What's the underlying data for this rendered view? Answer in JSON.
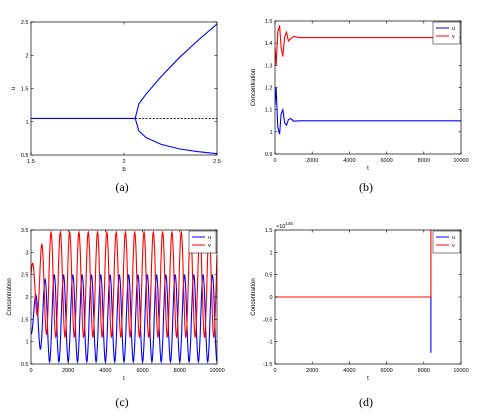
{
  "figure": {
    "captions": [
      "(a)",
      "(b)",
      "(c)",
      "(d)"
    ]
  },
  "chart_data": [
    {
      "panel": "a",
      "type": "line",
      "xlabel": "b",
      "ylabel": "u",
      "xlim": [
        1.5,
        2.5
      ],
      "ylim": [
        0.5,
        2.5
      ],
      "xticks": [
        "1.5",
        "2",
        "2.5"
      ],
      "yticks": [
        "0.5",
        "1",
        "1.5",
        "2",
        "2.5"
      ],
      "grid": false,
      "series": [
        {
          "style": "solid",
          "color": "#0000ff",
          "x": [
            1.5,
            2.06
          ],
          "y": [
            1.05,
            1.05
          ]
        },
        {
          "style": "dashed",
          "color": "#000000",
          "x": [
            2.06,
            2.5
          ],
          "y": [
            1.05,
            1.05
          ]
        },
        {
          "style": "solid",
          "color": "#0000ff",
          "x": [
            2.5,
            2.4,
            2.3,
            2.2,
            2.12,
            2.08,
            2.06,
            2.08,
            2.12,
            2.2,
            2.3,
            2.4,
            2.5
          ],
          "y": [
            2.47,
            2.23,
            1.97,
            1.68,
            1.42,
            1.27,
            1.05,
            0.86,
            0.76,
            0.66,
            0.59,
            0.55,
            0.52
          ]
        }
      ]
    },
    {
      "panel": "b",
      "type": "line",
      "xlabel": "t",
      "ylabel": "Concentration",
      "xlim": [
        0,
        10000
      ],
      "ylim": [
        0.9,
        1.5
      ],
      "xticks": [
        "0",
        "2000",
        "4000",
        "6000",
        "8000",
        "10000"
      ],
      "yticks": [
        "0.9",
        "1",
        "1.1",
        "1.2",
        "1.3",
        "1.4",
        "1.5"
      ],
      "legend": "top-right",
      "grid": false,
      "series": [
        {
          "name": "u",
          "color": "#0000ff",
          "x": [
            0,
            60,
            150,
            250,
            330,
            420,
            520,
            620,
            720,
            850,
            1000,
            1300,
            10000
          ],
          "y": [
            1.12,
            1.2,
            1.02,
            0.99,
            1.08,
            1.1,
            1.04,
            1.03,
            1.055,
            1.06,
            1.048,
            1.05,
            1.05
          ]
        },
        {
          "name": "v",
          "color": "#ff0000",
          "x": [
            0,
            60,
            150,
            250,
            330,
            420,
            520,
            620,
            720,
            850,
            1000,
            1300,
            10000
          ],
          "y": [
            1.38,
            1.3,
            1.45,
            1.48,
            1.38,
            1.34,
            1.43,
            1.45,
            1.41,
            1.42,
            1.43,
            1.425,
            1.425
          ]
        }
      ]
    },
    {
      "panel": "c",
      "type": "line",
      "xlabel": "t",
      "ylabel": "Concentration",
      "xlim": [
        0,
        10000
      ],
      "ylim": [
        0.5,
        3.5
      ],
      "xticks": [
        "0",
        "2000",
        "4000",
        "6000",
        "8000",
        "10000"
      ],
      "yticks": [
        "0.5",
        "1",
        "1.5",
        "2",
        "2.5",
        "3",
        "3.5"
      ],
      "legend": "top-right",
      "grid": false,
      "period": 500,
      "series": [
        {
          "name": "u",
          "color": "#0000ff",
          "min": 0.55,
          "max": 2.5
        },
        {
          "name": "v",
          "color": "#ff0000",
          "min": 1.1,
          "max": 3.45
        }
      ]
    },
    {
      "panel": "d",
      "type": "line",
      "xlabel": "t",
      "ylabel": "Concentration",
      "exponent_label": "10",
      "exponent": "145",
      "xlim": [
        0,
        10000
      ],
      "ylim": [
        -1.5,
        1.5
      ],
      "xticks": [
        "0",
        "2000",
        "4000",
        "6000",
        "8000",
        "10000"
      ],
      "yticks": [
        "-1.5",
        "-1",
        "-0.5",
        "0",
        "0.5",
        "1",
        "1.5"
      ],
      "legend": "top-right",
      "grid": false,
      "series": [
        {
          "name": "u",
          "color": "#0000ff",
          "x": [
            0,
            8380,
            8380
          ],
          "y": [
            0,
            0,
            -1.25
          ]
        },
        {
          "name": "v",
          "color": "#ff0000",
          "x": [
            0,
            8380,
            8380
          ],
          "y": [
            0,
            0,
            1.5
          ]
        }
      ]
    }
  ]
}
